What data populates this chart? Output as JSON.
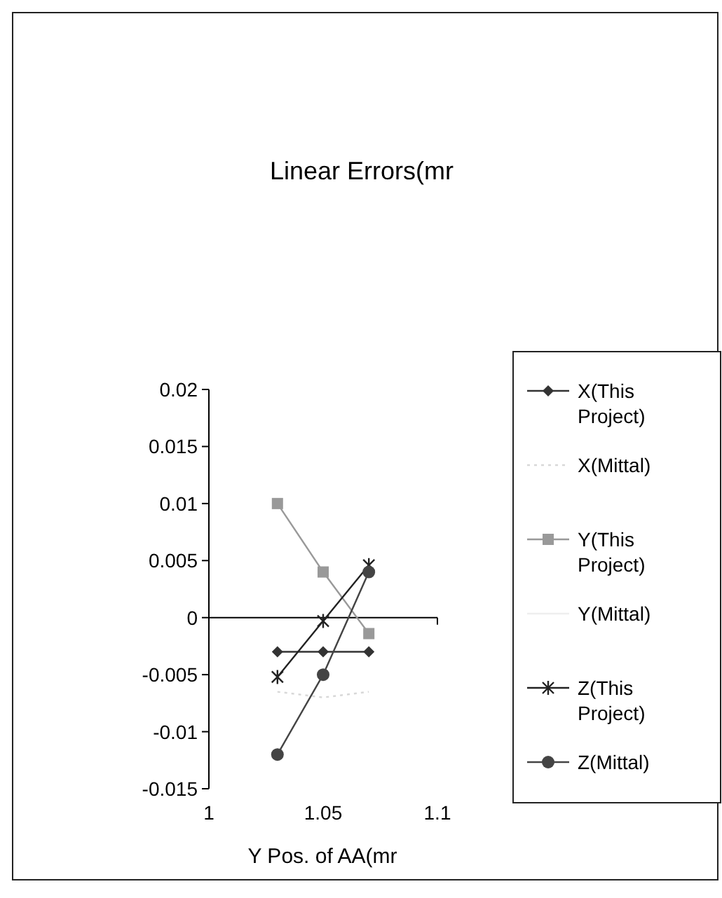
{
  "chart_data": {
    "type": "line",
    "title": "Linear Errors(mr",
    "xlabel": "Y Pos. of AA(mr",
    "x": [
      1.03,
      1.05,
      1.07
    ],
    "series": [
      {
        "name": "X(This Project)",
        "color": "#333333",
        "marker": "diamond",
        "values": [
          -0.003,
          -0.003,
          -0.003
        ]
      },
      {
        "name": "X(Mittal)",
        "color": "#d8d8d8",
        "marker": "none",
        "line_style": "dotted",
        "values": [
          -0.0065,
          -0.007,
          -0.0065
        ]
      },
      {
        "name": "Y(This Project)",
        "color": "#999999",
        "marker": "square",
        "values": [
          0.01,
          0.004,
          -0.0014
        ]
      },
      {
        "name": "Y(Mittal)",
        "color": "#eeeeee",
        "marker": "none",
        "values": [
          null,
          null,
          null
        ]
      },
      {
        "name": "Z(This Project)",
        "color": "#222222",
        "marker": "cross",
        "values": [
          -0.0052,
          -0.0003,
          0.0046
        ]
      },
      {
        "name": "Z(Mittal)",
        "color": "#444444",
        "marker": "circle",
        "values": [
          -0.012,
          -0.005,
          0.004
        ]
      }
    ],
    "xlim": [
      1,
      1.1
    ],
    "xticks": [
      1,
      1.05,
      1.1
    ],
    "ylim": [
      -0.015,
      0.02
    ],
    "yticks": [
      0.02,
      0.015,
      0.01,
      0.005,
      0,
      -0.005,
      -0.01,
      -0.015
    ],
    "legend": "right"
  }
}
